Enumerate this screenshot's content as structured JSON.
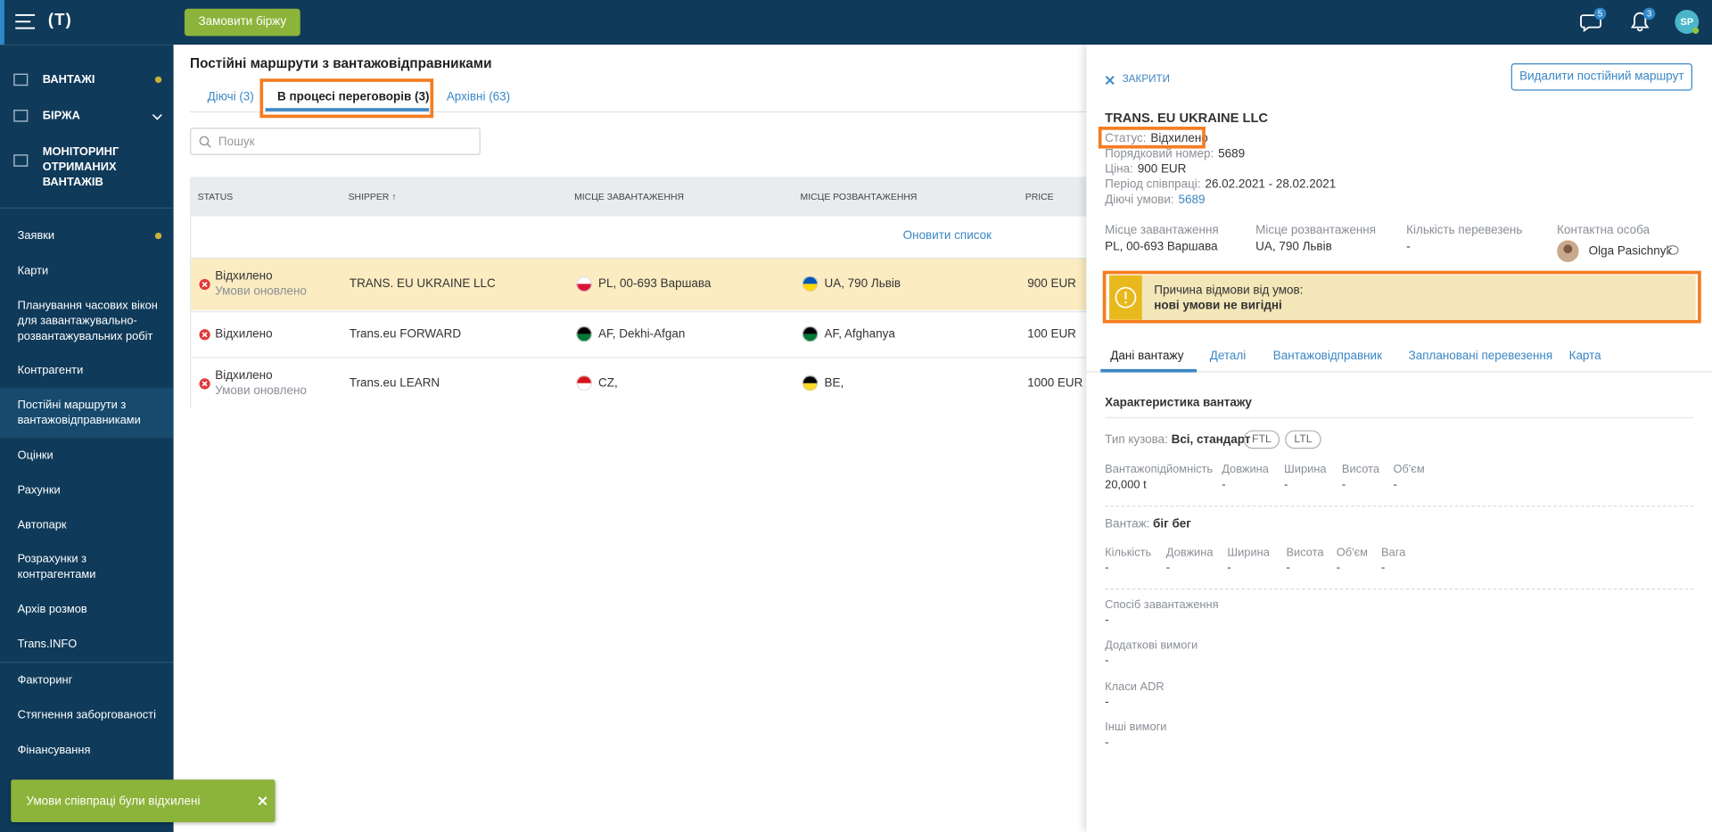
{
  "header": {
    "logo": "(T)",
    "order_button": "Замовити біржу",
    "messages_badge": "5",
    "notifications_badge": "3",
    "avatar": "SP"
  },
  "sidebar": {
    "groups": [
      [
        "ВАНТАЖІ",
        "БІРЖА",
        "МОНІТОРИНГ ОТРИМАНИХ ВАНТАЖІВ"
      ],
      [
        "Заявки",
        "Карти",
        "Планування часових вікон для завантажувально-розвантажувальних робіт",
        "Контрагенти",
        "Постійні маршрути з вантажовідправниками",
        "Оцінки",
        "Рахунки",
        "Автопарк",
        "Розрахунки з контрагентами",
        "Архів розмов",
        "Trans.INFO"
      ],
      [
        "Факторинг",
        "Стягнення заборгованості",
        "Фінансування"
      ]
    ]
  },
  "page": {
    "title": "Постійні маршрути з вантажовідправниками",
    "tabs": [
      "Діючі (3)",
      "В процесі переговорів (3)",
      "Архівні (63)"
    ],
    "search_placeholder": "Пошук",
    "refresh": "Оновити список"
  },
  "table": {
    "columns": [
      "STATUS",
      "SHIPPER ↑",
      "МІСЦЕ ЗАВАНТАЖЕННЯ",
      "МІСЦЕ РОЗВАНТАЖЕННЯ",
      "PRICE"
    ],
    "rows": [
      {
        "status": "Відхилено",
        "status_note": "Умови оновлено",
        "shipper": "TRANS. EU UKRAINE LLC",
        "loading": "PL, 00-693 Варшава",
        "unloading": "UA, 790 Львів",
        "price": "900 EUR"
      },
      {
        "status": "Відхилено",
        "shipper": "Trans.eu FORWARD",
        "loading": "AF, Dekhi-Afgan",
        "unloading": "AF, Afghanya",
        "price": "100 EUR"
      },
      {
        "status": "Відхилено",
        "status_note": "Умови оновлено",
        "shipper": "Trans.eu LEARN",
        "loading": "CZ,",
        "unloading": "BE,",
        "price": "1000 EUR"
      }
    ]
  },
  "panel": {
    "close": "ЗАКРИТИ",
    "delete_button": "Видалити постійний маршрут",
    "company": "TRANS. EU UKRAINE LLC",
    "facts": [
      {
        "label": "Статус:",
        "value": "Відхилено"
      },
      {
        "label": "Порядковий номер:",
        "value": "5689"
      },
      {
        "label": "Ціна:",
        "value": "900 EUR"
      },
      {
        "label": "Період співпраці:",
        "value": "26.02.2021 - 28.02.2021"
      },
      {
        "label": "Діючі умови:",
        "value": "5689"
      }
    ],
    "summary": [
      {
        "label": "Місце завантаження",
        "value": "PL, 00-693 Варшава"
      },
      {
        "label": "Місце розвантаження",
        "value": "UA, 790 Львів"
      },
      {
        "label": "Кількість перевезень",
        "value": "-"
      },
      {
        "label": "Контактна особа",
        "value": "Olga Pasichnyk"
      }
    ],
    "rejection": {
      "label": "Причина відмови від умов:",
      "reason": "нові умови не вигідні"
    },
    "tabs": [
      "Дані вантажу",
      "Деталі",
      "Вантажовідправник",
      "Заплановані перевезення",
      "Карта"
    ],
    "section_title": "Характеристика вантажу",
    "body_type": {
      "label": "Тип кузова:",
      "value": "Всі, стандарт",
      "tags": [
        "FTL",
        "LTL"
      ]
    },
    "vehicle_specs": [
      {
        "label": "Вантажопідйомність",
        "value": "20,000 t"
      },
      {
        "label": "Довжина",
        "value": "-"
      },
      {
        "label": "Ширина",
        "value": "-"
      },
      {
        "label": "Висота",
        "value": "-"
      },
      {
        "label": "Об'єм",
        "value": "-"
      }
    ],
    "cargo": {
      "label": "Вантаж:",
      "value": "біг бег"
    },
    "cargo_specs": [
      {
        "label": "Кількість",
        "value": "-"
      },
      {
        "label": "Довжина",
        "value": "-"
      },
      {
        "label": "Ширина",
        "value": "-"
      },
      {
        "label": "Висота",
        "value": "-"
      },
      {
        "label": "Об'єм",
        "value": "-"
      },
      {
        "label": "Вага",
        "value": "-"
      }
    ],
    "requirements": [
      {
        "label": "Спосіб завантаження",
        "value": "-"
      },
      {
        "label": "Додаткові вимоги",
        "value": "-"
      },
      {
        "label": "Класи ADR",
        "value": "-"
      },
      {
        "label": "Інші вимоги",
        "value": "-"
      }
    ]
  },
  "toast": {
    "text": "Умови співпраці були відхилені"
  }
}
